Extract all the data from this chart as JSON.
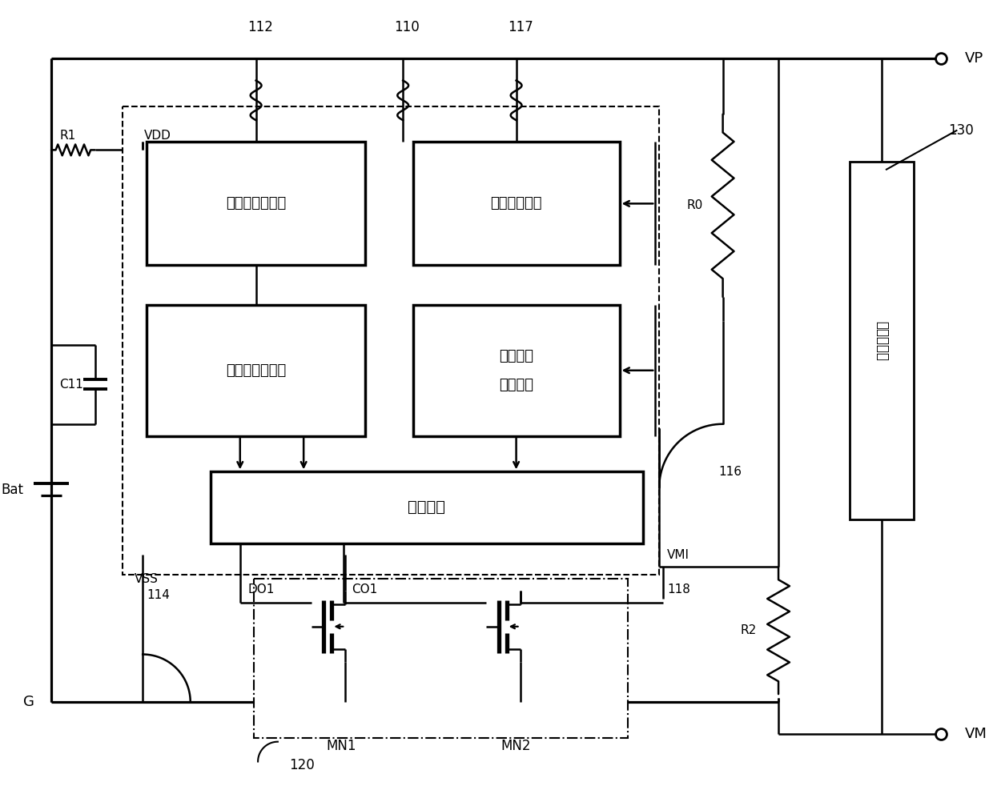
{
  "bg_color": "#ffffff",
  "lw": 1.8,
  "figsize": [
    12.4,
    9.92
  ],
  "dpi": 100,
  "labels": {
    "VP": "VP",
    "VM": "VM",
    "VDD": "VDD",
    "VSS": "VSS",
    "Bat": "Bat",
    "G": "G",
    "R1": "R1",
    "R0": "R0",
    "R2": "R2",
    "C11": "C11",
    "n112": "112",
    "n110": "110",
    "n117": "117",
    "n114": "114",
    "n116": "116",
    "n118": "118",
    "n120": "120",
    "n130": "130",
    "DO1": "DO1",
    "CO1": "CO1",
    "VMI": "VMI",
    "MN1": "MN1",
    "MN2": "MN2",
    "box1": "过充电检测电路",
    "box2": "短路检测电路",
    "box3": "过放电检测电路",
    "box4_line1": "充电过流",
    "box4_line2": "检测电路",
    "box5": "控制电路",
    "box6": "电池充电器"
  }
}
